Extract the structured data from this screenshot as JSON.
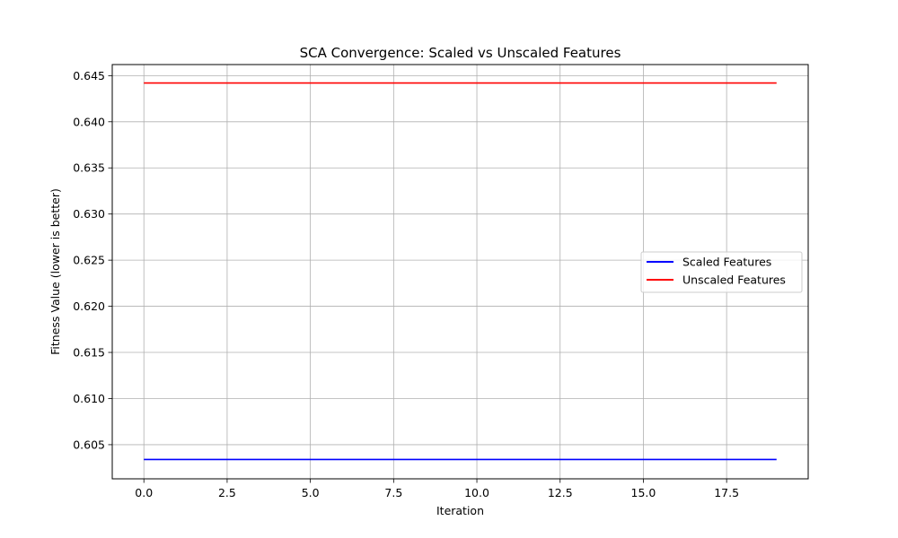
{
  "chart_data": {
    "type": "line",
    "title": "SCA Convergence: Scaled vs Unscaled Features",
    "xlabel": "Iteration",
    "ylabel": "Fitness Value (lower is better)",
    "xlim": [
      -0.95,
      19.95
    ],
    "ylim": [
      0.6013,
      0.6462
    ],
    "grid": true,
    "legend_position": "center-right",
    "xticks": [
      0,
      2.5,
      5,
      7.5,
      10,
      12.5,
      15,
      17.5
    ],
    "xtick_labels": [
      "0.0",
      "2.5",
      "5.0",
      "7.5",
      "10.0",
      "12.5",
      "15.0",
      "17.5"
    ],
    "yticks": [
      0.605,
      0.61,
      0.615,
      0.62,
      0.625,
      0.63,
      0.635,
      0.64,
      0.645
    ],
    "ytick_labels": [
      "0.605",
      "0.610",
      "0.615",
      "0.620",
      "0.625",
      "0.630",
      "0.635",
      "0.640",
      "0.645"
    ],
    "x": [
      0,
      1,
      2,
      3,
      4,
      5,
      6,
      7,
      8,
      9,
      10,
      11,
      12,
      13,
      14,
      15,
      16,
      17,
      18,
      19
    ],
    "series": [
      {
        "name": "Scaled Features",
        "color": "#0000ff",
        "values": [
          0.6034,
          0.6034,
          0.6034,
          0.6034,
          0.6034,
          0.6034,
          0.6034,
          0.6034,
          0.6034,
          0.6034,
          0.6034,
          0.6034,
          0.6034,
          0.6034,
          0.6034,
          0.6034,
          0.6034,
          0.6034,
          0.6034,
          0.6034
        ]
      },
      {
        "name": "Unscaled Features",
        "color": "#ff0000",
        "values": [
          0.6442,
          0.6442,
          0.6442,
          0.6442,
          0.6442,
          0.6442,
          0.6442,
          0.6442,
          0.6442,
          0.6442,
          0.6442,
          0.6442,
          0.6442,
          0.6442,
          0.6442,
          0.6442,
          0.6442,
          0.6442,
          0.6442,
          0.6442
        ]
      }
    ]
  }
}
